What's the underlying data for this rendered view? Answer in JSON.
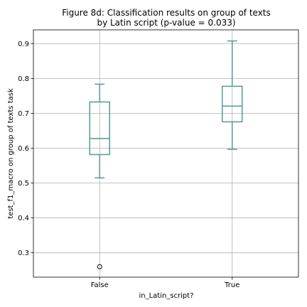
{
  "chart_data": {
    "type": "boxplot",
    "title_lines": [
      "Figure 8d: Classification results on group of texts",
      "by Latin script (p-value = 0.033)"
    ],
    "xlabel": "in_Latin_script?",
    "ylabel": "test_f1_macro on group of texts task",
    "categories": [
      "False",
      "True"
    ],
    "ylim": [
      0.23,
      0.94
    ],
    "yticks": [
      0.3,
      0.4,
      0.5,
      0.6,
      0.7,
      0.8,
      0.9
    ],
    "grid": true,
    "box_color": "#5f9e9a",
    "boxes": [
      {
        "category": "False",
        "whisker_low": 0.515,
        "q1": 0.582,
        "median": 0.628,
        "q3": 0.733,
        "whisker_high": 0.784,
        "outliers": [
          0.26
        ]
      },
      {
        "category": "True",
        "whisker_low": 0.597,
        "q1": 0.676,
        "median": 0.721,
        "q3": 0.778,
        "whisker_high": 0.908,
        "outliers": []
      }
    ]
  }
}
